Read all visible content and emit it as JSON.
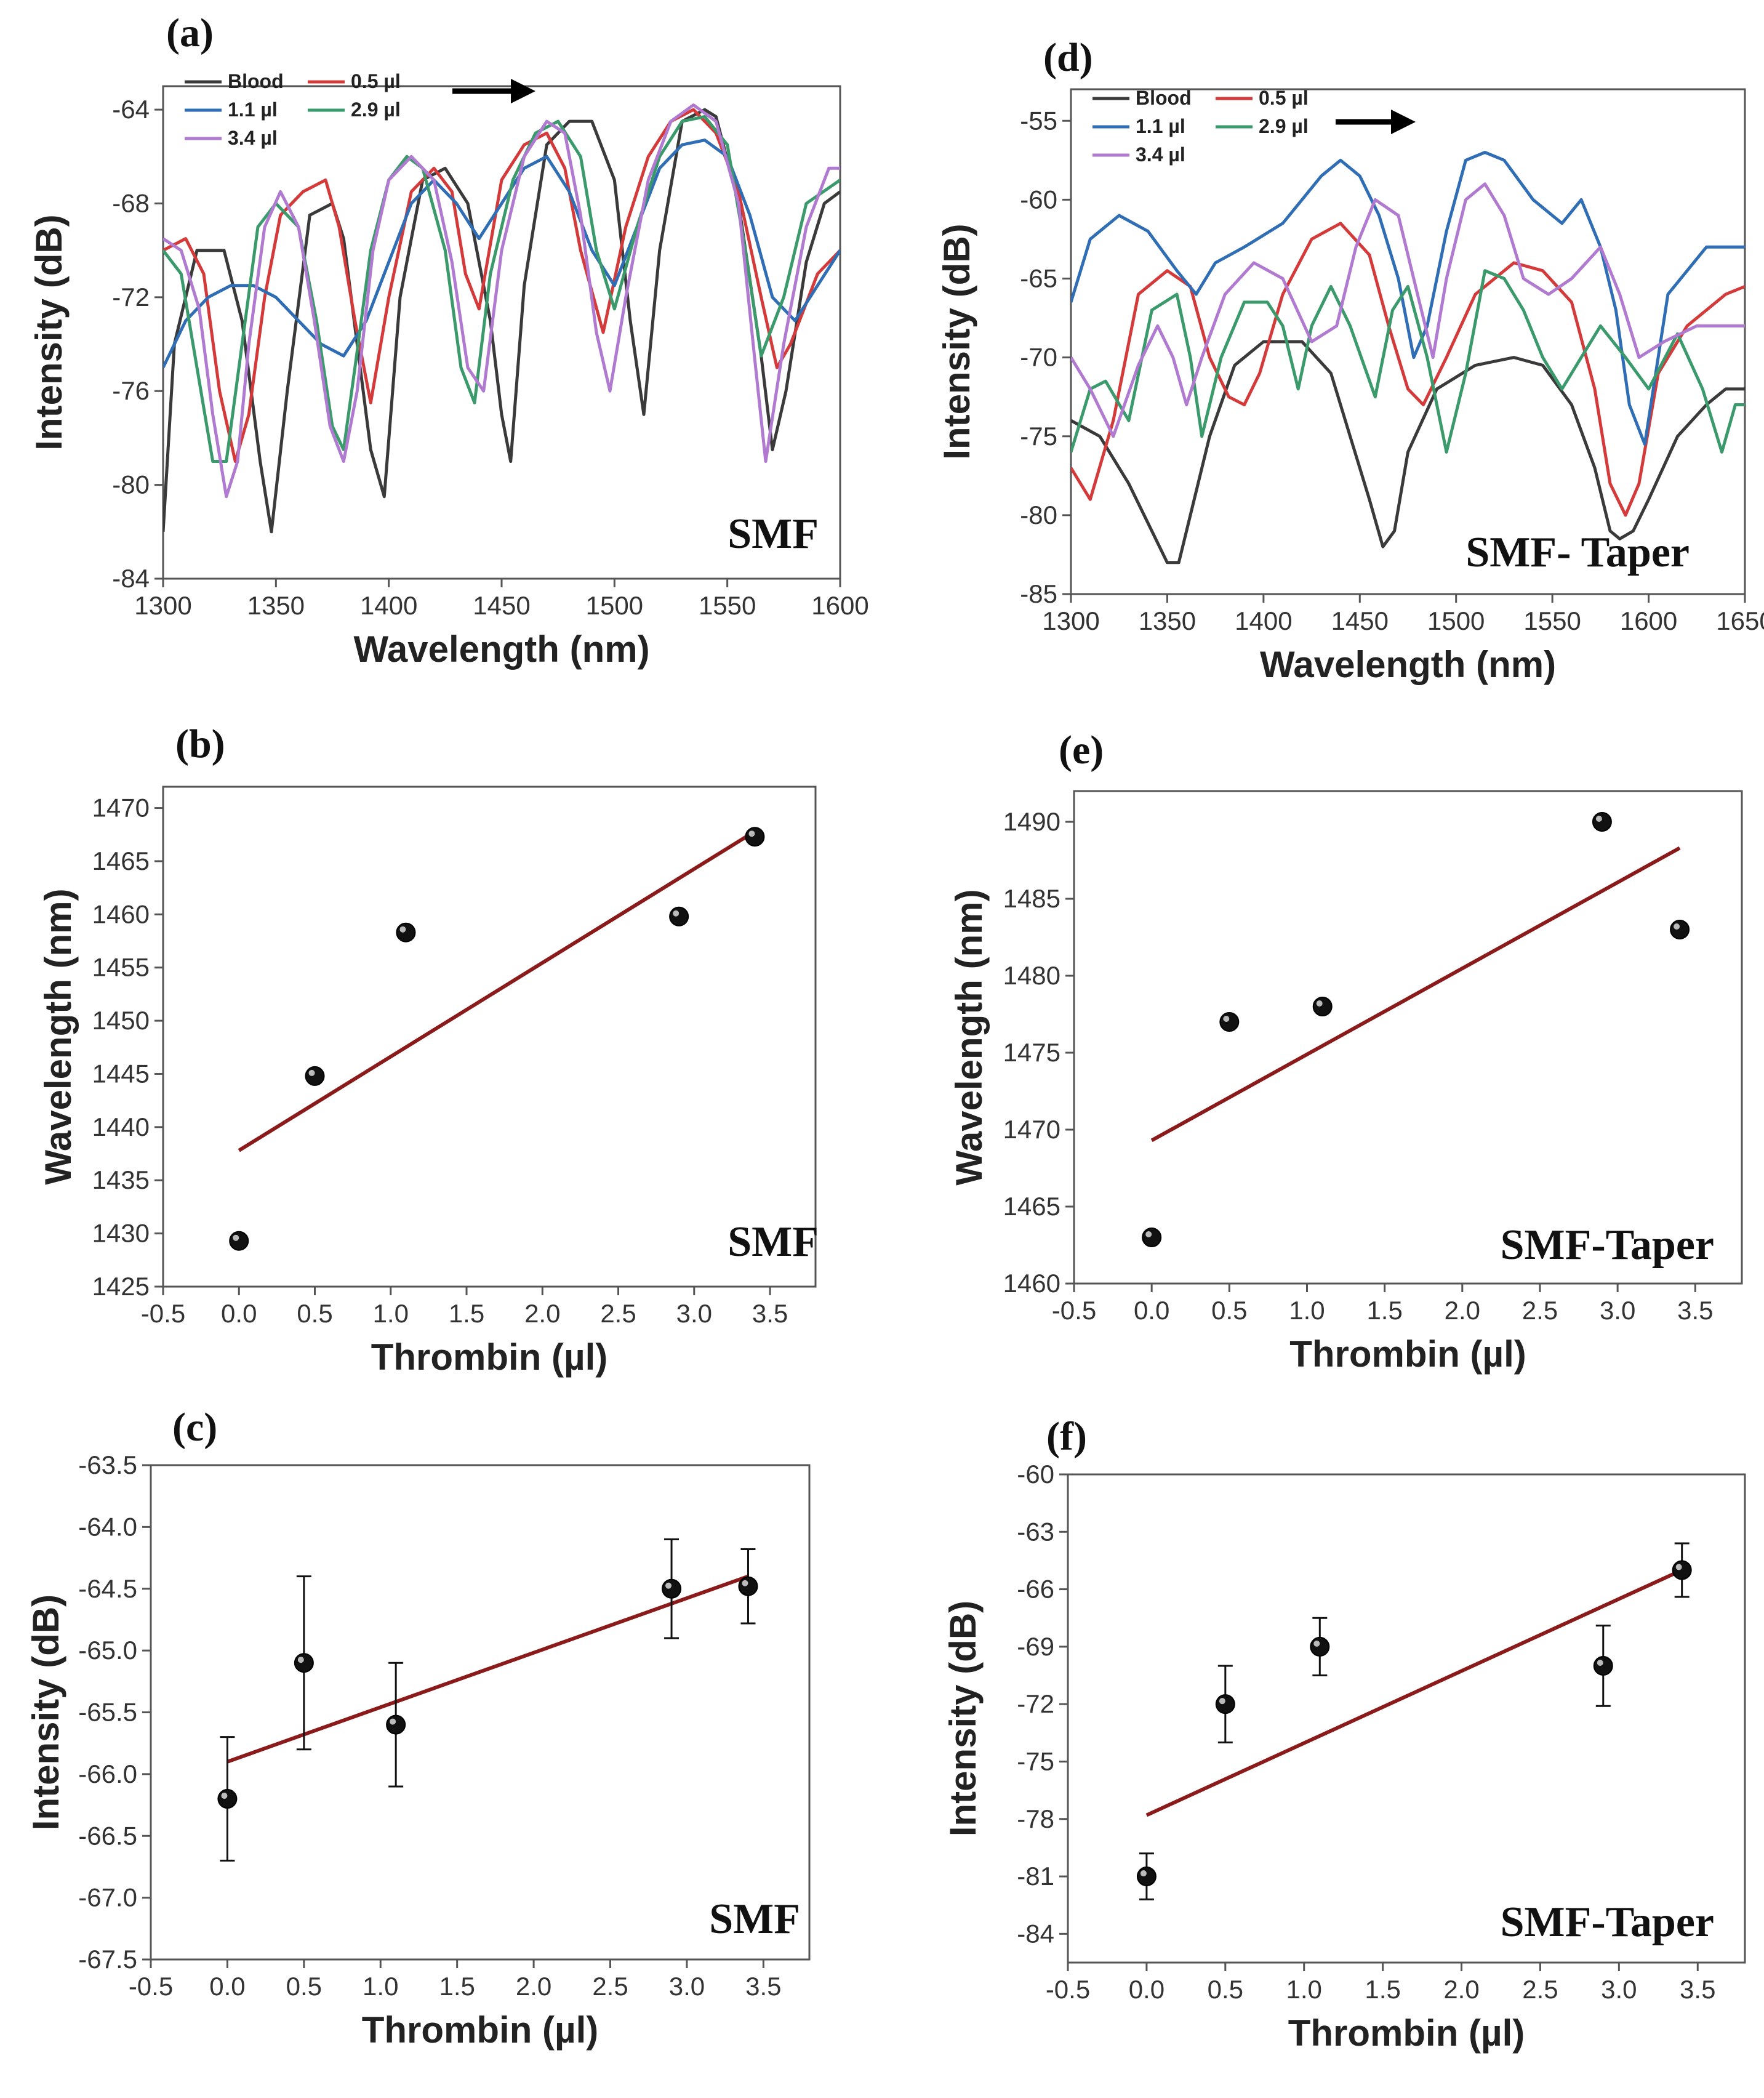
{
  "chart_data": [
    {
      "id": "a",
      "type": "line",
      "panel_label": "(a)",
      "annotation": "SMF",
      "xlabel": "Wavelength (nm)",
      "ylabel": "Intensity (dB)",
      "xlim": [
        1300,
        1600
      ],
      "ylim": [
        -84,
        -63
      ],
      "xticks": [
        1300,
        1350,
        1400,
        1450,
        1500,
        1550,
        1600
      ],
      "yticks": [
        -84,
        -80,
        -76,
        -72,
        -68,
        -64
      ],
      "legend": "top-left",
      "arrow": "right",
      "series": [
        {
          "name": "Blood",
          "color": "#3a3a3a",
          "x": [
            1300,
            1305,
            1315,
            1327,
            1335,
            1343,
            1348,
            1355,
            1365,
            1375,
            1380,
            1386,
            1392,
            1398,
            1405,
            1415,
            1425,
            1435,
            1445,
            1450,
            1454,
            1460,
            1470,
            1480,
            1490,
            1500,
            1507,
            1513,
            1520,
            1530,
            1540,
            1545,
            1555,
            1565,
            1570,
            1576,
            1585,
            1593,
            1600
          ],
          "y": [
            -82,
            -74,
            -70,
            -70,
            -73,
            -79,
            -82,
            -76,
            -68.5,
            -68,
            -69.5,
            -74,
            -78.5,
            -80.5,
            -72,
            -67,
            -66.5,
            -68,
            -73,
            -77,
            -79,
            -71.5,
            -65.5,
            -64.5,
            -64.5,
            -67,
            -73,
            -77,
            -70,
            -64.5,
            -64,
            -64.3,
            -68,
            -74.5,
            -78.5,
            -76,
            -70.5,
            -68,
            -67.5
          ]
        },
        {
          "name": "0.5 µl",
          "color": "#d43a3a",
          "x": [
            1300,
            1310,
            1318,
            1325,
            1332,
            1338,
            1345,
            1352,
            1362,
            1372,
            1378,
            1385,
            1392,
            1400,
            1410,
            1420,
            1428,
            1434,
            1440,
            1450,
            1460,
            1470,
            1478,
            1485,
            1495,
            1505,
            1515,
            1525,
            1535,
            1545,
            1555,
            1565,
            1572,
            1578,
            1590,
            1600
          ],
          "y": [
            -70,
            -69.5,
            -71,
            -76,
            -79,
            -77,
            -72,
            -68.5,
            -67.5,
            -67,
            -69,
            -73,
            -76.5,
            -72,
            -67.5,
            -66.5,
            -67.5,
            -71,
            -72.5,
            -67,
            -65.5,
            -65,
            -66.5,
            -70,
            -73.5,
            -69,
            -66,
            -64.5,
            -64,
            -65,
            -67.5,
            -72,
            -75,
            -74,
            -71,
            -70
          ]
        },
        {
          "name": "1.1 µl",
          "color": "#2f6db5",
          "x": [
            1300,
            1310,
            1320,
            1330,
            1340,
            1350,
            1360,
            1370,
            1380,
            1390,
            1400,
            1410,
            1420,
            1430,
            1440,
            1450,
            1460,
            1470,
            1480,
            1490,
            1500,
            1510,
            1520,
            1530,
            1540,
            1550,
            1560,
            1570,
            1580,
            1590,
            1600
          ],
          "y": [
            -75,
            -73,
            -72,
            -71.5,
            -71.5,
            -72,
            -73,
            -74,
            -74.5,
            -73,
            -70.5,
            -68,
            -67,
            -68,
            -69.5,
            -68,
            -66.5,
            -66,
            -67.5,
            -70,
            -71.5,
            -69,
            -66.5,
            -65.5,
            -65.3,
            -66,
            -68.5,
            -72,
            -73,
            -71.5,
            -70
          ]
        },
        {
          "name": "2.9 µl",
          "color": "#3a9a6b",
          "x": [
            1300,
            1308,
            1315,
            1322,
            1328,
            1335,
            1342,
            1350,
            1360,
            1368,
            1375,
            1380,
            1385,
            1392,
            1400,
            1408,
            1415,
            1425,
            1432,
            1438,
            1445,
            1455,
            1465,
            1475,
            1485,
            1492,
            1500,
            1510,
            1520,
            1530,
            1540,
            1550,
            1558,
            1565,
            1575,
            1585,
            1600
          ],
          "y": [
            -70,
            -71,
            -75,
            -79,
            -79,
            -74,
            -69,
            -68,
            -69,
            -73,
            -77.5,
            -78.5,
            -75,
            -70,
            -67,
            -66,
            -66.5,
            -70,
            -75,
            -76.5,
            -71,
            -67,
            -65,
            -64.5,
            -66,
            -70,
            -72.5,
            -69,
            -66,
            -64.5,
            -64.3,
            -65.5,
            -70,
            -74.5,
            -72,
            -68,
            -67
          ]
        },
        {
          "name": "3.4 µl",
          "color": "#b17ad1",
          "x": [
            1300,
            1308,
            1316,
            1322,
            1328,
            1333,
            1338,
            1345,
            1352,
            1360,
            1367,
            1374,
            1380,
            1386,
            1393,
            1400,
            1410,
            1420,
            1428,
            1435,
            1442,
            1450,
            1460,
            1470,
            1478,
            1485,
            1492,
            1498,
            1505,
            1515,
            1525,
            1535,
            1545,
            1555,
            1562,
            1567,
            1575,
            1585,
            1595,
            1600
          ],
          "y": [
            -69.5,
            -70,
            -72.5,
            -77,
            -80.5,
            -79,
            -74,
            -69,
            -67.5,
            -69,
            -73,
            -77.5,
            -79,
            -76,
            -70,
            -67,
            -66,
            -67,
            -70.5,
            -75,
            -76,
            -70,
            -66,
            -64.5,
            -65,
            -68.5,
            -73.5,
            -76,
            -72,
            -67,
            -64.5,
            -63.8,
            -64.5,
            -68,
            -74.5,
            -79,
            -74,
            -69,
            -66.5,
            -66.5
          ]
        }
      ]
    },
    {
      "id": "d",
      "type": "line",
      "panel_label": "(d)",
      "annotation": "SMF- Taper",
      "xlabel": "Wavelength (nm)",
      "ylabel": "Intensity (dB)",
      "xlim": [
        1300,
        1650
      ],
      "ylim": [
        -85,
        -53
      ],
      "xticks": [
        1300,
        1350,
        1400,
        1450,
        1500,
        1550,
        1600,
        1650
      ],
      "yticks": [
        -85,
        -80,
        -75,
        -70,
        -65,
        -60,
        -55
      ],
      "legend": "top-left",
      "arrow": "right",
      "series": [
        {
          "name": "Blood",
          "color": "#3a3a3a",
          "x": [
            1300,
            1315,
            1330,
            1342,
            1350,
            1356,
            1362,
            1372,
            1385,
            1400,
            1420,
            1435,
            1445,
            1455,
            1462,
            1468,
            1475,
            1490,
            1510,
            1530,
            1545,
            1560,
            1572,
            1580,
            1585,
            1592,
            1600,
            1615,
            1630,
            1640,
            1650
          ],
          "y": [
            -74,
            -75,
            -78,
            -81,
            -83,
            -83,
            -80,
            -75,
            -70.5,
            -69,
            -69,
            -71,
            -75,
            -79,
            -82,
            -81,
            -76,
            -72,
            -70.5,
            -70,
            -70.5,
            -73,
            -77,
            -81,
            -81.5,
            -81,
            -79,
            -75,
            -73,
            -72,
            -72
          ]
        },
        {
          "name": "0.5 µl",
          "color": "#d43a3a",
          "x": [
            1300,
            1310,
            1322,
            1335,
            1350,
            1362,
            1372,
            1382,
            1390,
            1398,
            1410,
            1425,
            1440,
            1455,
            1465,
            1475,
            1483,
            1495,
            1510,
            1530,
            1545,
            1560,
            1572,
            1580,
            1588,
            1595,
            1605,
            1620,
            1640,
            1650
          ],
          "y": [
            -77,
            -79,
            -74,
            -66,
            -64.5,
            -65.5,
            -70,
            -72.5,
            -73,
            -71,
            -66,
            -62.5,
            -61.5,
            -63.5,
            -68,
            -72,
            -73,
            -70,
            -66,
            -64,
            -64.5,
            -66.5,
            -72,
            -78,
            -80,
            -78,
            -71,
            -68,
            -66,
            -65.5
          ]
        },
        {
          "name": "1.1 µl",
          "color": "#2f6db5",
          "x": [
            1300,
            1310,
            1325,
            1340,
            1355,
            1365,
            1375,
            1390,
            1410,
            1420,
            1430,
            1440,
            1450,
            1460,
            1470,
            1478,
            1485,
            1495,
            1505,
            1515,
            1525,
            1540,
            1555,
            1565,
            1575,
            1583,
            1590,
            1598,
            1610,
            1630,
            1650
          ],
          "y": [
            -66.5,
            -62.5,
            -61,
            -62,
            -64.5,
            -66,
            -64,
            -63,
            -61.5,
            -60,
            -58.5,
            -57.5,
            -58.5,
            -61,
            -65,
            -70,
            -68,
            -62,
            -57.5,
            -57,
            -57.5,
            -60,
            -61.5,
            -60,
            -63,
            -67,
            -73,
            -75.5,
            -66,
            -63,
            -63
          ]
        },
        {
          "name": "2.9 µl",
          "color": "#3a9a6b",
          "x": [
            1300,
            1310,
            1318,
            1330,
            1342,
            1355,
            1362,
            1368,
            1378,
            1390,
            1402,
            1410,
            1418,
            1425,
            1435,
            1445,
            1458,
            1467,
            1475,
            1485,
            1495,
            1505,
            1515,
            1525,
            1535,
            1545,
            1555,
            1565,
            1575,
            1588,
            1600,
            1615,
            1628,
            1638,
            1645,
            1650
          ],
          "y": [
            -76,
            -72,
            -71.5,
            -74,
            -67,
            -66,
            -70,
            -75,
            -70,
            -66.5,
            -66.5,
            -68,
            -72,
            -68,
            -65.5,
            -68,
            -72.5,
            -67,
            -65.5,
            -70,
            -76,
            -71,
            -64.5,
            -65,
            -67,
            -70,
            -72,
            -70,
            -68,
            -70,
            -72,
            -68.5,
            -72,
            -76,
            -73,
            -73
          ]
        },
        {
          "name": "3.4 µl",
          "color": "#b17ad1",
          "x": [
            1300,
            1310,
            1322,
            1335,
            1345,
            1353,
            1360,
            1368,
            1380,
            1395,
            1410,
            1425,
            1438,
            1448,
            1458,
            1470,
            1480,
            1488,
            1495,
            1505,
            1515,
            1525,
            1535,
            1548,
            1560,
            1575,
            1585,
            1595,
            1608,
            1625,
            1640,
            1650
          ],
          "y": [
            -70,
            -72,
            -75,
            -70.5,
            -68,
            -70,
            -73,
            -70,
            -66,
            -64,
            -65,
            -69,
            -68,
            -63,
            -60,
            -61,
            -66,
            -70,
            -65,
            -60,
            -59,
            -61,
            -65,
            -66,
            -65,
            -63,
            -66,
            -70,
            -69,
            -68,
            -68,
            -68
          ]
        }
      ]
    },
    {
      "id": "b",
      "type": "scatter",
      "panel_label": "(b)",
      "annotation": "SMF",
      "xlabel": "Thrombin (µl)",
      "ylabel": "Wavelength (nm)",
      "xlim": [
        -0.5,
        3.8
      ],
      "ylim": [
        1425,
        1472
      ],
      "xticks": [
        -0.5,
        0.0,
        0.5,
        1.0,
        1.5,
        2.0,
        2.5,
        3.0,
        3.5
      ],
      "yticks": [
        1425,
        1430,
        1435,
        1440,
        1445,
        1450,
        1455,
        1460,
        1465,
        1470
      ],
      "points": {
        "x": [
          0,
          0.5,
          1.1,
          2.9,
          3.4
        ],
        "y": [
          1429.3,
          1444.8,
          1458.3,
          1459.8,
          1467.3
        ]
      },
      "fit": {
        "x": [
          0,
          3.4
        ],
        "y": [
          1437.8,
          1467.8
        ]
      }
    },
    {
      "id": "e",
      "type": "scatter",
      "panel_label": "(e)",
      "annotation": "SMF-Taper",
      "xlabel": "Thrombin (µl)",
      "ylabel": "Wavelength (nm)",
      "xlim": [
        -0.5,
        3.8
      ],
      "ylim": [
        1460,
        1492
      ],
      "xticks": [
        -0.5,
        0.0,
        0.5,
        1.0,
        1.5,
        2.0,
        2.5,
        3.0,
        3.5
      ],
      "yticks": [
        1460,
        1465,
        1470,
        1475,
        1480,
        1485,
        1490
      ],
      "points": {
        "x": [
          0,
          0.5,
          1.1,
          2.9,
          3.4
        ],
        "y": [
          1463,
          1477,
          1478,
          1490,
          1483
        ]
      },
      "fit": {
        "x": [
          0,
          3.4
        ],
        "y": [
          1469.3,
          1488.3
        ]
      }
    },
    {
      "id": "c",
      "type": "scatter",
      "panel_label": "(c)",
      "annotation": "SMF",
      "xlabel": "Thrombin (µl)",
      "ylabel": "Intensity (dB)",
      "xlim": [
        -0.5,
        3.8
      ],
      "ylim": [
        -67.5,
        -63.5
      ],
      "xticks": [
        -0.5,
        0.0,
        0.5,
        1.0,
        1.5,
        2.0,
        2.5,
        3.0,
        3.5
      ],
      "yticks": [
        -67.5,
        -67.0,
        -66.5,
        -66.0,
        -65.5,
        -65.0,
        -64.5,
        -64.0,
        -63.5
      ],
      "points": {
        "x": [
          0,
          0.5,
          1.1,
          2.9,
          3.4
        ],
        "y": [
          -66.2,
          -65.1,
          -65.6,
          -64.5,
          -64.48
        ],
        "err": [
          0.5,
          0.7,
          0.5,
          0.4,
          0.3
        ]
      },
      "fit": {
        "x": [
          0,
          3.4
        ],
        "y": [
          -65.9,
          -64.4
        ]
      }
    },
    {
      "id": "f",
      "type": "scatter",
      "panel_label": "(f)",
      "annotation": "SMF-Taper",
      "xlabel": "Thrombin (µl)",
      "ylabel": "Intensity (dB)",
      "xlim": [
        -0.5,
        3.8
      ],
      "ylim": [
        -85.5,
        -60
      ],
      "xticks": [
        -0.5,
        0.0,
        0.5,
        1.0,
        1.5,
        2.0,
        2.5,
        3.0,
        3.5
      ],
      "yticks": [
        -84,
        -81,
        -78,
        -75,
        -72,
        -69,
        -66,
        -63,
        -60
      ],
      "points": {
        "x": [
          0,
          0.5,
          1.1,
          2.9,
          3.4
        ],
        "y": [
          -81,
          -72,
          -69,
          -70,
          -65
        ],
        "err": [
          1.2,
          2.0,
          1.5,
          2.1,
          1.4
        ]
      },
      "fit": {
        "x": [
          0,
          3.4
        ],
        "y": [
          -77.8,
          -65
        ]
      }
    }
  ]
}
